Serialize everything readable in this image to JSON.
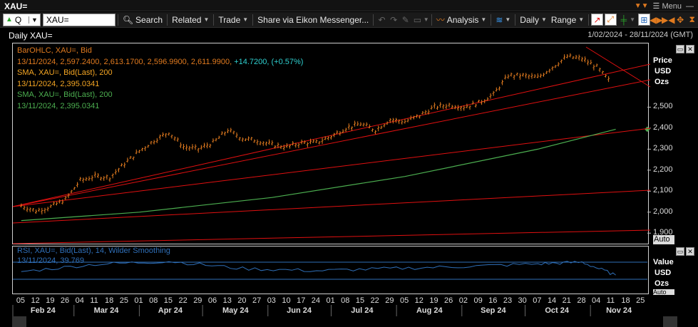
{
  "window": {
    "title": "XAU=",
    "menu_label": "Menu"
  },
  "toolbar": {
    "ric_value": "XAU=",
    "q_label": "Q",
    "search_label": "Search",
    "related_label": "Related",
    "trade_label": "Trade",
    "share_label": "Share via Eikon Messenger...",
    "analysis_label": "Analysis",
    "interval_label": "Daily",
    "range_label": "Range"
  },
  "header": {
    "chart_title": "Daily XAU=",
    "date_range": "1/02/2024 - 28/11/2024 (GMT)"
  },
  "legend": {
    "line1": "BarOHLC, XAU=, Bid",
    "line2_prefix": "13/11/2024, 2,597.2400, 2,613.1700, 2,596.9900, 2,611.9900, ",
    "line2_change": "+14.7200, (+0.57%)",
    "line3": "SMA, XAU=, Bid(Last),  200",
    "line4": "13/11/2024, 2,395.0341",
    "line5": "SMA, XAU=, Bid(Last),  200",
    "line6": "13/11/2024, 2,395.0341"
  },
  "rsi_legend": {
    "line1": "RSI, XAU=, Bid(Last),  14, Wilder Smoothing",
    "line2": "13/11/2024, 39.769"
  },
  "price_axis": {
    "title1": "Price",
    "title2": "USD",
    "title3": "Ozs",
    "ticks": [
      "2,500",
      "2,400",
      "2,300",
      "2,200",
      "2,100",
      "2,000",
      "1,900"
    ],
    "current_value": "2,400"
  },
  "rsi_axis": {
    "title1": "Value",
    "title2": "USD",
    "title3": "Ozs"
  },
  "auto_label": "Auto",
  "auto_label2": "Auto",
  "x_axis": {
    "days": [
      "05",
      "12",
      "19",
      "26",
      "04",
      "11",
      "18",
      "25",
      "01",
      "08",
      "15",
      "22",
      "29",
      "06",
      "13",
      "20",
      "27",
      "03",
      "10",
      "17",
      "24",
      "01",
      "08",
      "15",
      "22",
      "29",
      "05",
      "12",
      "19",
      "26",
      "02",
      "09",
      "16",
      "23",
      "30",
      "07",
      "14",
      "21",
      "28",
      "04",
      "11",
      "18",
      "25"
    ],
    "months": [
      "Feb 24",
      "Mar 24",
      "Apr 24",
      "May 24",
      "Jun 24",
      "Jul 24",
      "Aug 24",
      "Sep 24",
      "Oct 24",
      "Nov 24"
    ]
  },
  "colors": {
    "accent": "#e07a1f",
    "price_bars": "#e07a1f",
    "sma_orange": "#f5a623",
    "sma_green": "#4caf50",
    "trend_lines": "#e01010",
    "rsi": "#2f6fb8",
    "change_cyan": "#2fd0d0"
  },
  "chart_data": {
    "type": "bar",
    "series": [
      {
        "name": "BarOHLC, XAU=, Bid",
        "x": [
          "2024-02-05",
          "2024-02-12",
          "2024-02-19",
          "2024-02-26",
          "2024-03-04",
          "2024-03-11",
          "2024-03-18",
          "2024-03-25",
          "2024-04-01",
          "2024-04-08",
          "2024-04-15",
          "2024-04-22",
          "2024-04-29",
          "2024-05-06",
          "2024-05-13",
          "2024-05-20",
          "2024-05-27",
          "2024-06-03",
          "2024-06-10",
          "2024-06-17",
          "2024-06-24",
          "2024-07-01",
          "2024-07-08",
          "2024-07-15",
          "2024-07-22",
          "2024-07-29",
          "2024-08-05",
          "2024-08-12",
          "2024-08-19",
          "2024-08-26",
          "2024-09-02",
          "2024-09-09",
          "2024-09-16",
          "2024-09-23",
          "2024-09-30",
          "2024-10-07",
          "2024-10-14",
          "2024-10-21",
          "2024-10-28",
          "2024-11-04",
          "2024-11-11"
        ],
        "values": [
          2030,
          2005,
          2025,
          2060,
          2150,
          2170,
          2165,
          2230,
          2290,
          2340,
          2380,
          2310,
          2300,
          2330,
          2390,
          2350,
          2340,
          2320,
          2310,
          2330,
          2330,
          2360,
          2400,
          2420,
          2390,
          2440,
          2430,
          2460,
          2500,
          2510,
          2500,
          2520,
          2560,
          2650,
          2650,
          2640,
          2690,
          2740,
          2730,
          2690,
          2611.99
        ]
      },
      {
        "name": "SMA, XAU=, Bid(Last),  200",
        "x": [
          "2024-02-05",
          "2024-04-01",
          "2024-06-03",
          "2024-08-05",
          "2024-10-07",
          "2024-11-13"
        ],
        "values": [
          1960,
          2000,
          2070,
          2170,
          2300,
          2395.03
        ]
      },
      {
        "name": "RSI, XAU=, Bid(Last),  14, Wilder Smoothing",
        "x": [
          "2024-02-05",
          "2024-03-11",
          "2024-04-15",
          "2024-05-20",
          "2024-06-24",
          "2024-07-29",
          "2024-09-02",
          "2024-10-07",
          "2024-10-28",
          "2024-11-13"
        ],
        "values": [
          48,
          65,
          72,
          55,
          50,
          55,
          60,
          66,
          70,
          39.769
        ]
      }
    ],
    "xlabel": "",
    "ylabel": "",
    "ylim": [
      1850,
      2800
    ]
  }
}
